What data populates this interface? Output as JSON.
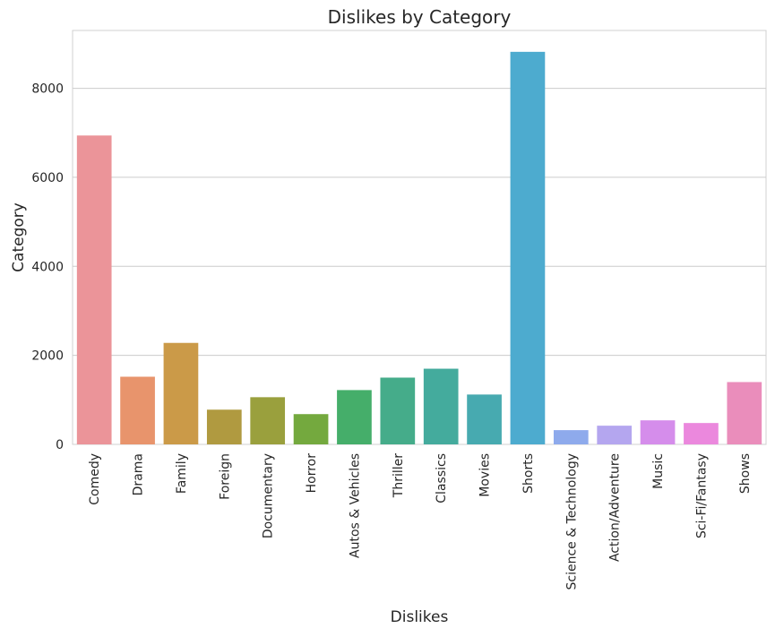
{
  "chart_data": {
    "type": "bar",
    "title": "Dislikes by Category",
    "xlabel": "Dislikes",
    "ylabel": "Category",
    "categories": [
      "Comedy",
      "Drama",
      "Family",
      "Foreign",
      "Documentary",
      "Horror",
      "Autos & Vehicles",
      "Thriller",
      "Classics",
      "Movies",
      "Shorts",
      "Science & Technology",
      "Action/Adventure",
      "Music",
      "Sci-Fi/Fantasy",
      "Shows"
    ],
    "values": [
      6940,
      1520,
      2280,
      780,
      1060,
      680,
      1220,
      1500,
      1700,
      1120,
      8820,
      320,
      420,
      540,
      480,
      1400
    ],
    "colors": [
      "#eb9499",
      "#e8946c",
      "#cb9a48",
      "#b09a40",
      "#9aa03d",
      "#74a93e",
      "#45ae6a",
      "#45ac8a",
      "#44ab9d",
      "#47aab0",
      "#4dabcf",
      "#8eaaec",
      "#b4a6ef",
      "#d58deb",
      "#eb88dd",
      "#ea8dbb"
    ],
    "ylim": [
      0,
      9300
    ],
    "yticks": [
      0,
      2000,
      4000,
      6000,
      8000
    ],
    "grid": true,
    "legend": "none"
  }
}
